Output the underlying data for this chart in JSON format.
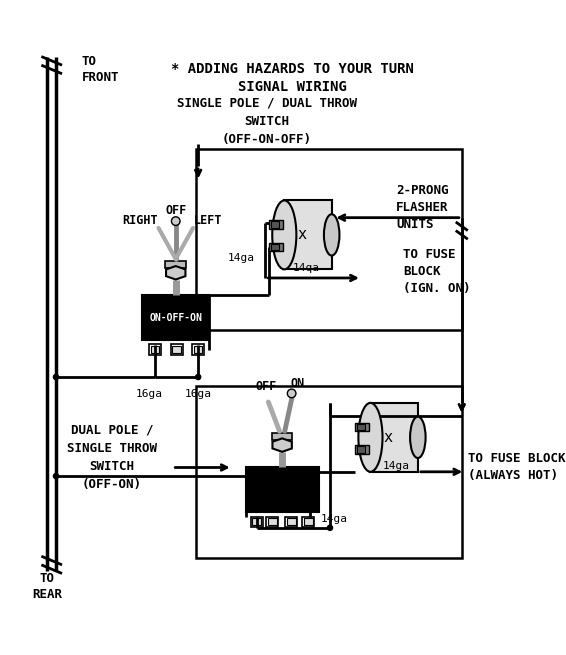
{
  "title_line1": "* ADDING HAZARDS TO YOUR TURN",
  "title_line2": "SIGNAL WIRING",
  "bg_color": "#ffffff",
  "line_color": "#000000",
  "to_front": "TO\nFRONT",
  "to_rear": "TO\nREAR",
  "single_pole_label": "SINGLE POLE / DUAL THROW\nSWITCH\n(OFF-ON-OFF)",
  "dual_pole_label": "DUAL POLE /\nSINGLE THROW\nSWITCH\n(OFF-ON)",
  "two_prong_label": "2-PRONG\nFLASHER\nUNITS",
  "fuse_ign_label": "TO FUSE\nBLOCK\n(IGN. ON)",
  "fuse_hot_label": "TO FUSE BLOCK\n(ALWAYS HOT)",
  "off_label": "OFF",
  "right_label": "RIGHT",
  "left_label": "LEFT",
  "on_off_on_label": "ON-OFF-ON",
  "off_label2": "OFF",
  "on_label2": "ON",
  "label_14ga_1": "14ga",
  "label_14ga_2": "14qa",
  "label_14ga_3": "14ga",
  "label_14ga_4": "14ga",
  "label_16ga_1": "16ga",
  "label_16ga_2": "16ga"
}
